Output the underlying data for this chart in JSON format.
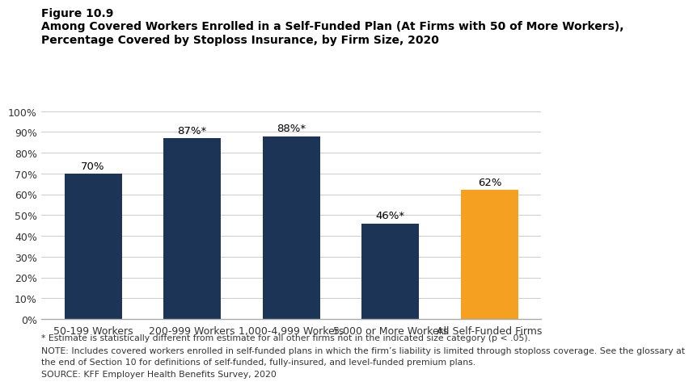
{
  "figure_label": "Figure 10.9",
  "title_line1": "Among Covered Workers Enrolled in a Self-Funded Plan (At Firms with 50 of More Workers),",
  "title_line2": "Percentage Covered by Stoploss Insurance, by Firm Size, 2020",
  "categories": [
    "50-199 Workers",
    "200-999 Workers",
    "1,000-4,999 Workers",
    "5,000 or More Workers",
    "All Self-Funded Firms"
  ],
  "values": [
    70,
    87,
    88,
    46,
    62
  ],
  "bar_labels": [
    "70%",
    "87%*",
    "88%*",
    "46%*",
    "62%"
  ],
  "bar_colors": [
    "#1c3557",
    "#1c3557",
    "#1c3557",
    "#1c3557",
    "#f5a020"
  ],
  "ylim": [
    0,
    100
  ],
  "ytick_labels": [
    "0%",
    "10%",
    "20%",
    "30%",
    "40%",
    "50%",
    "60%",
    "70%",
    "80%",
    "90%",
    "100%"
  ],
  "ytick_values": [
    0,
    10,
    20,
    30,
    40,
    50,
    60,
    70,
    80,
    90,
    100
  ],
  "footnote_star": "* Estimate is statistically different from estimate for all other firms not in the indicated size category (p < .05).",
  "footnote_note1": "NOTE: Includes covered workers enrolled in self-funded plans in which the firm’s liability is limited through stoploss coverage. See the glossary at",
  "footnote_note2": "the end of Section 10 for definitions of self-funded, fully-insured, and level-funded premium plans.",
  "footnote_source": "SOURCE: KFF Employer Health Benefits Survey, 2020",
  "bar_label_fontsize": 9.5,
  "footnote_fontsize": 7.8
}
